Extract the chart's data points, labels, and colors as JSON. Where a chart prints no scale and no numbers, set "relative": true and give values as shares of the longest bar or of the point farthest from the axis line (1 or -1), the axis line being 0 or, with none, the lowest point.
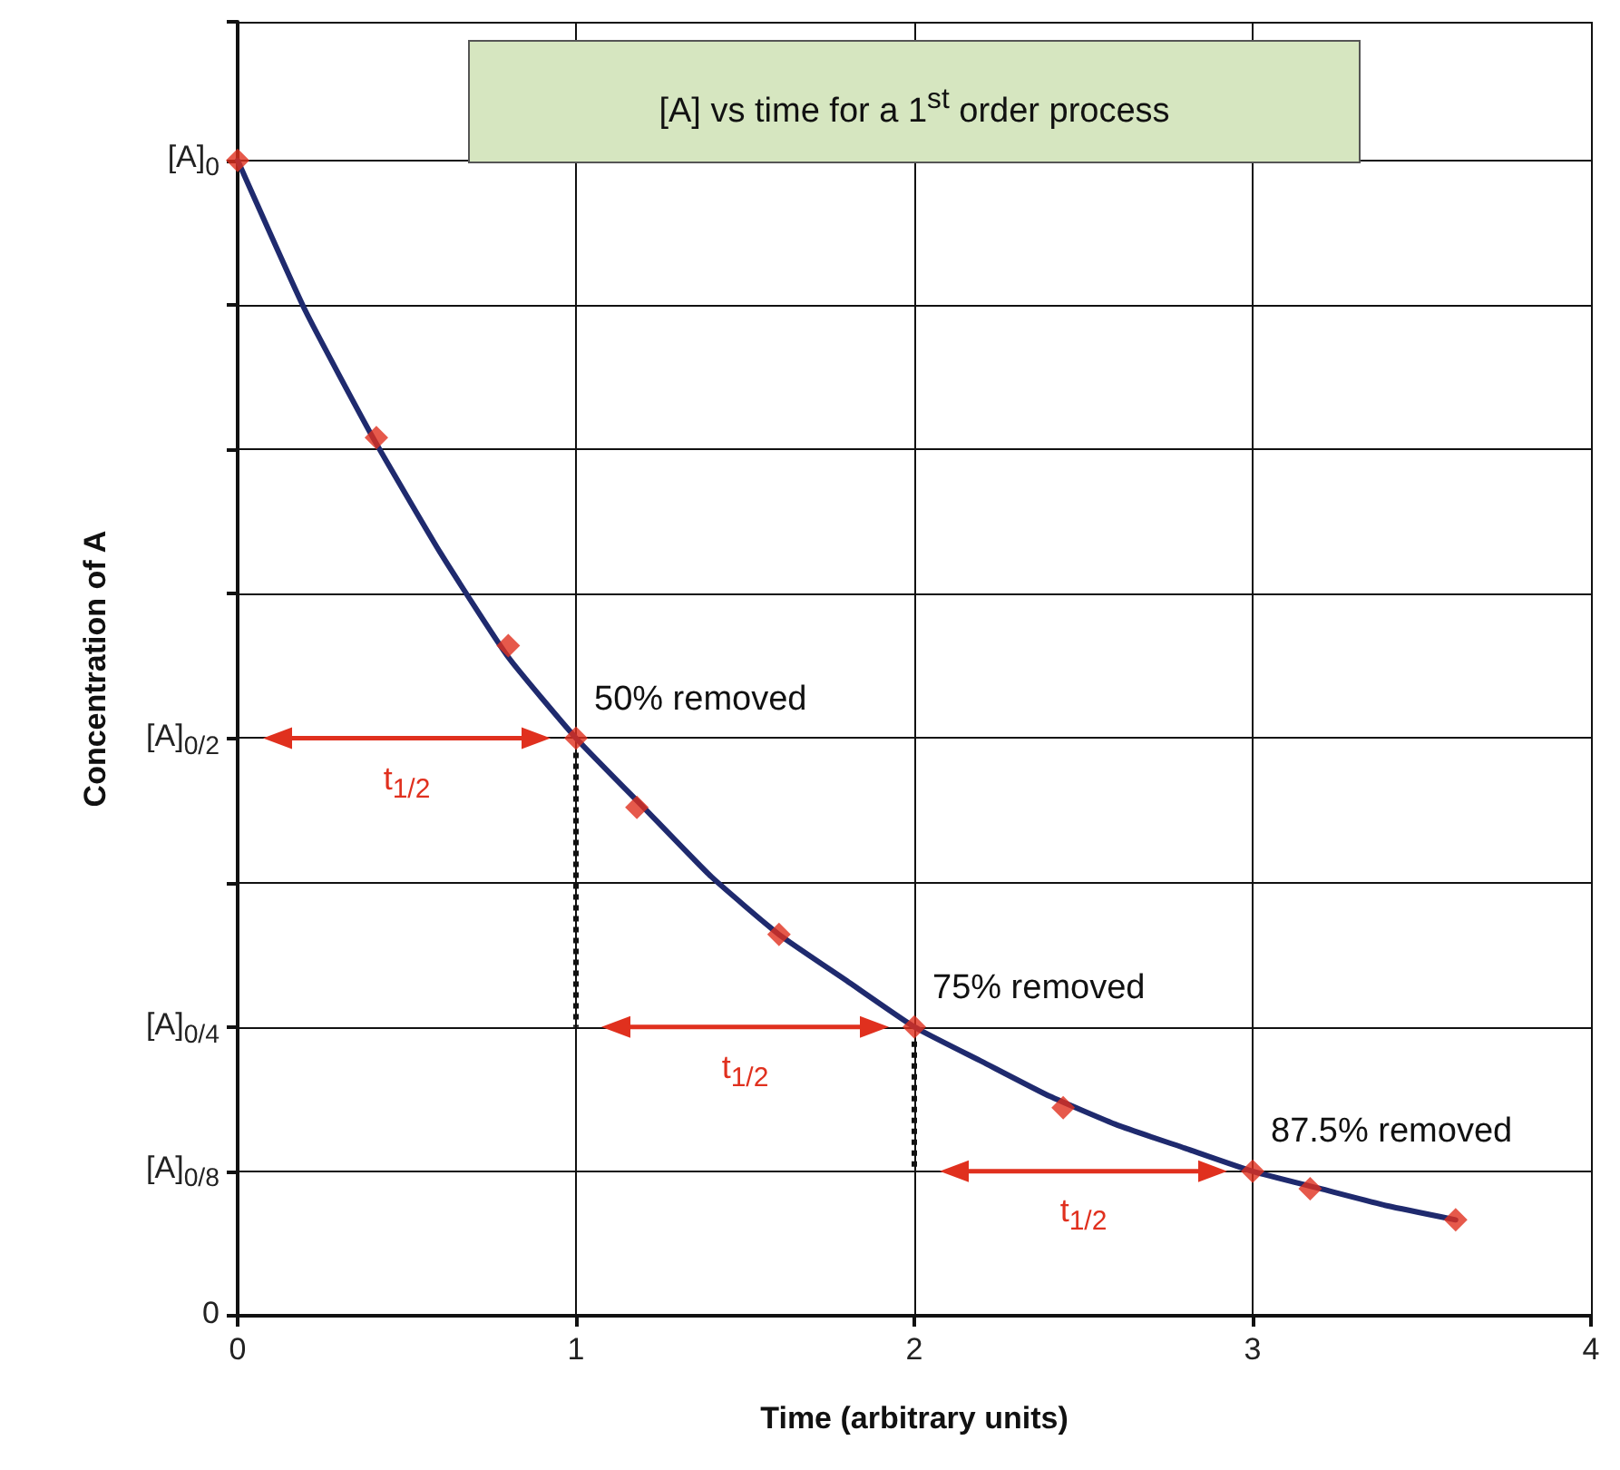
{
  "chart_data": {
    "type": "line",
    "title": "[A] vs time for a 1$^{st}$ order process",
    "xlabel": "Time (arbitrary units)",
    "ylabel": "Concentration of A",
    "xlim": [
      0,
      4
    ],
    "xticks": [
      0,
      1,
      2,
      3,
      4
    ],
    "relative": true,
    "grid": true,
    "series": [
      {
        "marker": "none",
        "color": "#1f2a6e",
        "x": [
          0,
          0.2,
          0.4,
          0.6,
          0.8,
          1,
          1.2,
          1.4,
          1.6,
          1.8,
          2,
          2.2,
          2.4,
          2.6,
          2.8,
          3,
          3.2,
          3.4,
          3.6
        ],
        "values": [
          1,
          0.87,
          0.76,
          0.66,
          0.57,
          0.5,
          0.44,
          0.38,
          0.33,
          0.29,
          0.25,
          0.22,
          0.19,
          0.165,
          0.145,
          0.125,
          0.11,
          0.095,
          0.083
        ]
      },
      {
        "type": "scatter",
        "marker": "diamond",
        "color": "#e0301e",
        "x": [
          0,
          0.41,
          0.8,
          1,
          1.18,
          1.6,
          2,
          2.44,
          3,
          3.17,
          3.6
        ],
        "values": [
          1,
          0.76,
          0.58,
          0.5,
          0.44,
          0.33,
          0.25,
          0.18,
          0.125,
          0.11,
          0.083
        ]
      }
    ],
    "annotations": [
      "0",
      "[A]$_{0/8}$",
      "[A]$_{0/4}$",
      "[A]$_{0/2}$",
      "[A]$_{0}$",
      {
        "text": "50% removed",
        "x": 1,
        "y": 0.5
      },
      {
        "text": "75% removed",
        "x": 2,
        "y": 0.25
      },
      {
        "text": "87.5% removed",
        "x": 3,
        "y": 0.125
      },
      "t$_{1/2}$",
      "t$_{1/2}$",
      "t$_{1/2}$"
    ]
  }
}
